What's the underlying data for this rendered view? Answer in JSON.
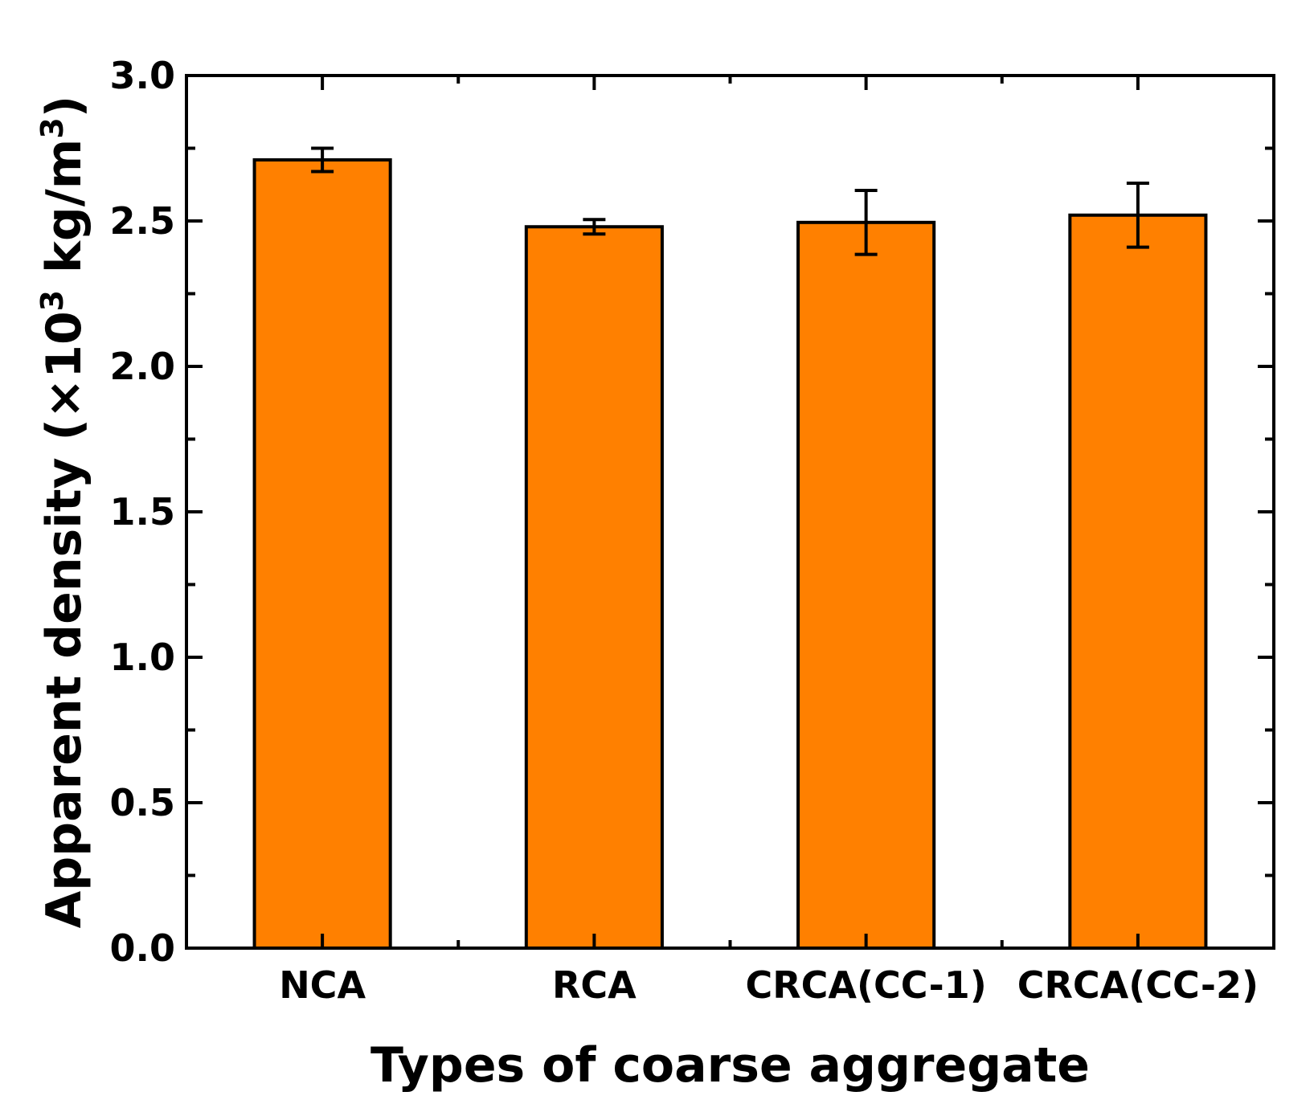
{
  "chart_data": {
    "type": "bar",
    "title": "",
    "xlabel": "Types of coarse aggregate",
    "ylabel": {
      "prefix": "Apparent density (×10",
      "exp1": "3",
      "mid": " kg/m",
      "exp2": "3",
      "suffix": ")"
    },
    "categories": [
      "NCA",
      "RCA",
      "CRCA(CC-1)",
      "CRCA(CC-2)"
    ],
    "values": [
      2.71,
      2.48,
      2.495,
      2.52
    ],
    "errors": [
      0.04,
      0.025,
      0.11,
      0.11
    ],
    "ylim": [
      0,
      3.0
    ],
    "yticks": [
      "0.0",
      "0.5",
      "1.0",
      "1.5",
      "2.0",
      "2.5",
      "3.0"
    ],
    "ytick_values": [
      0,
      0.5,
      1.0,
      1.5,
      2.0,
      2.5,
      3.0
    ],
    "bar_color": "#FF8000",
    "edge_color": "#000000",
    "grid": false,
    "legend": "none"
  }
}
